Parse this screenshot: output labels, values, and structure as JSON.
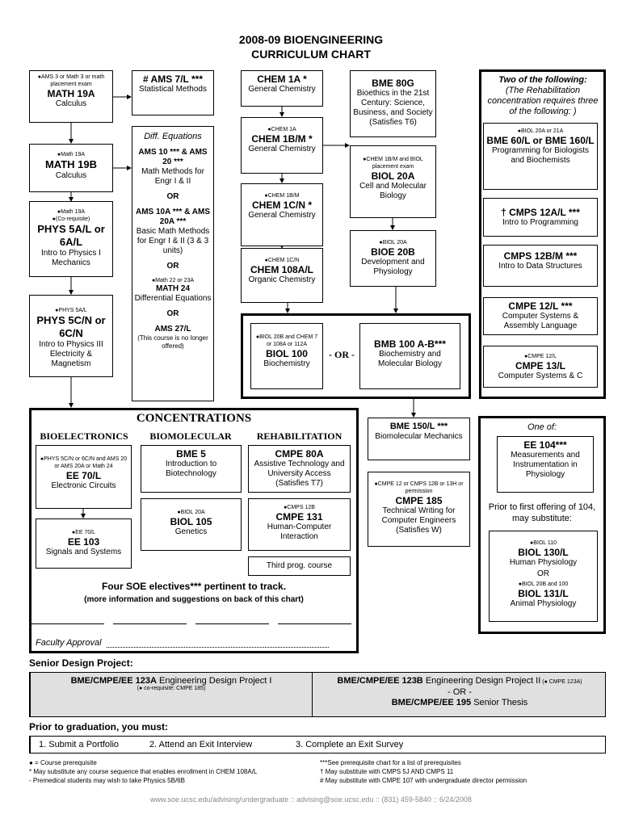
{
  "header": {
    "line1": "2008-09 BIOENGINEERING",
    "line2": "CURRICULUM CHART"
  },
  "courses": {
    "math19a": {
      "pre": "AMS 3 or Math 3 or math placement exam",
      "code": "MATH 19A",
      "title": "Calculus"
    },
    "math19b": {
      "pre": "Math 19A",
      "code": "MATH 19B",
      "title": "Calculus"
    },
    "phys5a": {
      "pre": "Math 19A",
      "pre2": "(Co-requisite)",
      "code": "PHYS 5A/L or 6A/L",
      "title": "Intro to Physics I Mechanics"
    },
    "phys5c": {
      "pre": "PHYS 5A/L",
      "code": "PHYS 5C/N or 6C/N",
      "title": "Intro to Physics III Electricity & Magnetism"
    },
    "ams7": {
      "code": "# AMS 7/L ***",
      "title": "Statistical Methods"
    },
    "diffeq": {
      "heading": "Diff. Equations",
      "a_code": "AMS 10 *** & AMS 20 ***",
      "a_title": "Math Methods for Engr I & II",
      "or1": "OR",
      "b_code": "AMS 10A *** & AMS 20A ***",
      "b_title": "Basic Math Methods for Engr I & II (3 & 3 units)",
      "or2": "OR",
      "c_pre": "Math 22 or 23A",
      "c_code": "MATH 24",
      "c_title": "Differential Equations",
      "or3": "OR",
      "d_code": "AMS 27/L",
      "d_title": "(This course is no longer offered)"
    },
    "chem1a": {
      "code": "CHEM 1A *",
      "title": "General Chemistry"
    },
    "chem1b": {
      "pre": "CHEM 1A",
      "code": "CHEM 1B/M *",
      "title": "General Chemistry"
    },
    "chem1c": {
      "pre": "CHEM 1B/M",
      "code": "CHEM 1C/N *",
      "title": "General Chemistry"
    },
    "chem108": {
      "pre": "CHEM 1C/N",
      "code": "CHEM 108A/L",
      "title": "Organic Chemistry"
    },
    "bme80g": {
      "code": "BME 80G",
      "title": "Bioethics in the 21st Century: Science, Business, and Society (Satisfies T6)"
    },
    "biol20a": {
      "pre": "CHEM 1B/M and BIOL placement exam",
      "code": "BIOL 20A",
      "title": "Cell and Molecular Biology"
    },
    "bioe20b": {
      "pre": "BIOL 20A",
      "code": "BIOE 20B",
      "title": "Development and Physiology"
    },
    "biol100": {
      "pre": "BIOL 20B and CHEM 7 or 108A or 112A",
      "code": "BIOL 100",
      "title": "Biochemistry"
    },
    "or_sep": "- OR -",
    "bmb100": {
      "code": "BMB 100 A-B***",
      "title": "Biochemistry and Molecular Biology"
    },
    "two_of": {
      "heading": "Two of the following:",
      "note": "(The Rehabilitation concentration requires three of the following: )"
    },
    "bme60": {
      "pre": "BIOL 20A or 21A",
      "code": "BME 60/L or BME 160/L",
      "title": "Programming for Biologists and Biochemists"
    },
    "cmps12a": {
      "code": "† CMPS 12A/L ***",
      "title": "Intro to Programming"
    },
    "cmps12b": {
      "code": "CMPS 12B/M ***",
      "title": "Intro to Data Structures"
    },
    "cmpe12": {
      "code": "CMPE 12/L ***",
      "title": "Computer Systems & Assembly Language"
    },
    "cmpe13": {
      "pre": "CMPE 12/L",
      "code": "CMPE 13/L",
      "title": "Computer Systems & C"
    },
    "bme150": {
      "code": "BME 150/L ***",
      "title": "Biomolecular Mechanics"
    },
    "cmpe185": {
      "pre": "CMPE 12 or CMPS 12B or 13H or permission",
      "code": "CMPE 185",
      "title": "Technical Writing for Computer Engineers (Satisfies W)"
    },
    "one_of": {
      "heading": "One of:",
      "prior": "Prior to first offering of 104, may substitute:"
    },
    "ee104": {
      "code": "EE 104***",
      "title": "Measurements and Instrumentation in Physiology"
    },
    "biol130": {
      "pre": "BIOL 110",
      "code": "BIOL 130/L",
      "title": "Human Physiology",
      "or": "OR",
      "pre2": "BIOL 20B and 100",
      "code2": "BIOL 131/L",
      "title2": "Animal Physiology"
    }
  },
  "concentrations": {
    "heading": "CONCENTRATIONS",
    "cols": [
      "BIOELECTRONICS",
      "BIOMOLECULAR",
      "REHABILITATION"
    ],
    "ee70": {
      "pre": "PHYS 5C/N or 6C/N and AMS 20 or AMS 20A or Math 24",
      "code": "EE 70/L",
      "title": "Electronic Circuits"
    },
    "ee103": {
      "pre": "EE 70/L",
      "code": "EE 103",
      "title": "Signals and Systems"
    },
    "bme5": {
      "code": "BME 5",
      "title": "Introduction to Biotechnology"
    },
    "biol105": {
      "pre": "BIOL 20A",
      "code": "BIOL 105",
      "title": "Genetics"
    },
    "cmpe80a": {
      "code": "CMPE 80A",
      "title": "Assistive Technology and University Access (Satisfies T7)"
    },
    "cmpe131": {
      "pre": "CMPS 12B",
      "code": "CMPE 131",
      "title": "Human-Computer Interaction"
    },
    "third": "Third prog. course",
    "electives": "Four SOE electives*** pertinent to track.",
    "more_info": "(more information and suggestions on back of this chart)",
    "faculty": "Faculty Approval"
  },
  "senior": {
    "heading": "Senior Design Project:",
    "a_code": "BME/CMPE/EE 123A",
    "a_title": " Engineering Design Project I",
    "a_note": "(● co-requisite: CMPE 185)",
    "b_code": "BME/CMPE/EE 123B",
    "b_title": " Engineering Design Project II",
    "b_note": " (● CMPE 123A)",
    "or": "- OR -",
    "c_code": "BME/CMPE/EE 195",
    "c_title": " Senior Thesis",
    "bg": "#e0e0e0"
  },
  "graduation": {
    "heading": "Prior to graduation, you must:",
    "items": [
      "1. Submit a Portfolio",
      "2. Attend an Exit Interview",
      "3. Complete an Exit Survey"
    ]
  },
  "footnotes": {
    "left": [
      "● = Course prerequisite",
      "* May substitute any course sequence that enables enrollment in CHEM 108A/L",
      "- Premedical students may wish to take Physics 5B/6B"
    ],
    "right": [
      "***See prerequisite chart for a list of prerequisites",
      "† May substitute with CMPS 5J AND CMPS 11",
      "# May substitute with CMPE 107 with undergraduate director permission"
    ]
  },
  "footer": "www.soe.ucsc.edu/advising/undergraduate :: advising@soe.ucsc.edu :: (831) 459-5840 :: 6/24/2008"
}
